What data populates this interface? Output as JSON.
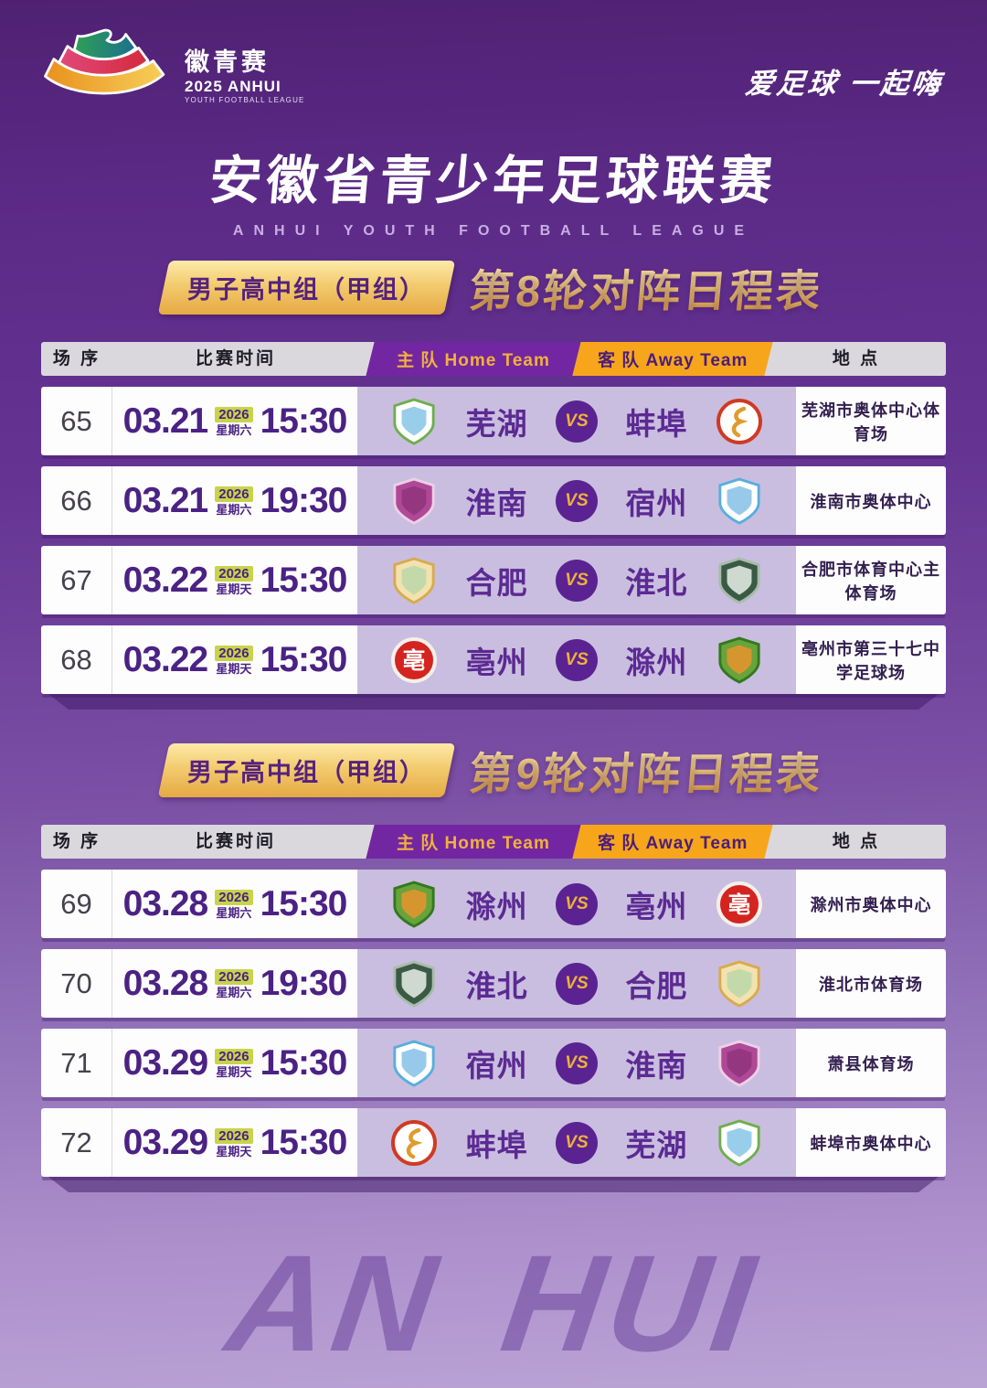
{
  "logo": {
    "title": "徽青赛",
    "year_line": "2025 ANHUI",
    "sub_line": "YOUTH FOOTBALL LEAGUE"
  },
  "header": {
    "slogan": "爱足球  一起嗨",
    "title": "安徽省青少年足球联赛",
    "subtitle": "ANHUI YOUTH FOOTBALL LEAGUE"
  },
  "table_header": {
    "seq": "场 序",
    "time": "比赛时间",
    "home": "主 队 Home Team",
    "away": "客 队 Away Team",
    "venue": "地 点"
  },
  "vs_label": "VS",
  "colors": {
    "accent_purple": "#5a2391",
    "accent_gold": "#f0b03c",
    "accent_orange": "#f7a61b",
    "year_badge_green": "#c8d34c",
    "row_team_bg": "#c9bedf"
  },
  "teams": {
    "wuhu": {
      "name": "芜湖",
      "logo": {
        "shape": "shield",
        "fill": "#ffffff",
        "border": "#6fae4e",
        "detail": "#8ec9e8"
      }
    },
    "bengbu": {
      "name": "蚌埠",
      "logo": {
        "shape": "circle",
        "fill": "#ffffff",
        "border": "#cf3a23",
        "detail": "#e09b2d"
      }
    },
    "huainan": {
      "name": "淮南",
      "logo": {
        "shape": "shield",
        "fill": "#b04898",
        "border": "#ecd0e6",
        "detail": "#92357d"
      }
    },
    "suzhou": {
      "name": "宿州",
      "logo": {
        "shape": "shield",
        "fill": "#ffffff",
        "border": "#58aede",
        "detail": "#8cc3e8"
      }
    },
    "hefei": {
      "name": "合肥",
      "logo": {
        "shape": "shield",
        "fill": "#f2e2af",
        "border": "#d9aa4d",
        "detail": "#bfd8a8"
      }
    },
    "huaibei": {
      "name": "淮北",
      "logo": {
        "shape": "shield",
        "fill": "#3a5a45",
        "border": "#a9bcab",
        "detail": "#dfe8df"
      }
    },
    "bozhou": {
      "name": "亳州",
      "logo": {
        "shape": "circle",
        "fill": "#d42420",
        "border": "#f4f0ea",
        "glyph": "亳",
        "glyphColor": "#ffffff"
      }
    },
    "chuzhou": {
      "name": "滁州",
      "logo": {
        "shape": "shield",
        "fill": "#69a33b",
        "border": "#33781f",
        "detail": "#e2952f"
      }
    }
  },
  "sections": [
    {
      "group_label": "男子高中组（甲组）",
      "round_title": "第8轮对阵日程表",
      "matches": [
        {
          "no": "65",
          "date": "03.21",
          "year": "2026",
          "weekday": "星期六",
          "time": "15:30",
          "home": "wuhu",
          "away": "bengbu",
          "venue": "芜湖市奥体中心体育场"
        },
        {
          "no": "66",
          "date": "03.21",
          "year": "2026",
          "weekday": "星期六",
          "time": "19:30",
          "home": "huainan",
          "away": "suzhou",
          "venue": "淮南市奥体中心"
        },
        {
          "no": "67",
          "date": "03.22",
          "year": "2026",
          "weekday": "星期天",
          "time": "15:30",
          "home": "hefei",
          "away": "huaibei",
          "venue": "合肥市体育中心主体育场"
        },
        {
          "no": "68",
          "date": "03.22",
          "year": "2026",
          "weekday": "星期天",
          "time": "15:30",
          "home": "bozhou",
          "away": "chuzhou",
          "venue": "亳州市第三十七中学足球场"
        }
      ]
    },
    {
      "group_label": "男子高中组（甲组）",
      "round_title": "第9轮对阵日程表",
      "matches": [
        {
          "no": "69",
          "date": "03.28",
          "year": "2026",
          "weekday": "星期六",
          "time": "15:30",
          "home": "chuzhou",
          "away": "bozhou",
          "venue": "滁州市奥体中心"
        },
        {
          "no": "70",
          "date": "03.28",
          "year": "2026",
          "weekday": "星期六",
          "time": "19:30",
          "home": "huaibei",
          "away": "hefei",
          "venue": "淮北市体育场"
        },
        {
          "no": "71",
          "date": "03.29",
          "year": "2026",
          "weekday": "星期天",
          "time": "15:30",
          "home": "suzhou",
          "away": "huainan",
          "venue": "萧县体育场"
        },
        {
          "no": "72",
          "date": "03.29",
          "year": "2026",
          "weekday": "星期天",
          "time": "15:30",
          "home": "bengbu",
          "away": "wuhu",
          "venue": "蚌埠市奥体中心"
        }
      ]
    }
  ],
  "footer": {
    "watermark": "AN HUI"
  }
}
